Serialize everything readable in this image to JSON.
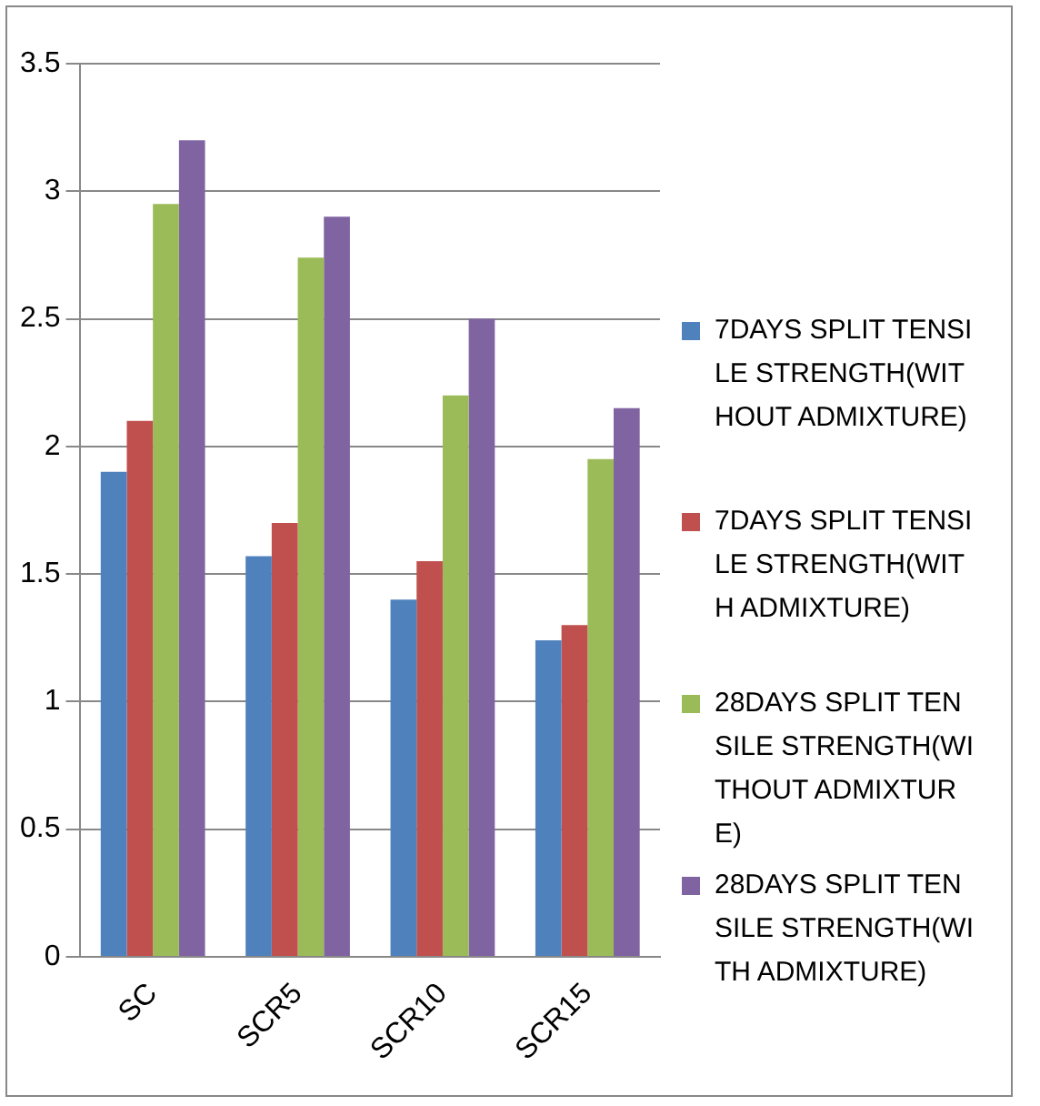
{
  "chart_data": {
    "type": "bar",
    "categories": [
      "SC",
      "SCR5",
      "SCR10",
      "SCR15"
    ],
    "series": [
      {
        "name": "7DAYS SPLIT TENSILE STRENGTH(WITHOUT ADMIXTURE)",
        "color": "#4f81bd",
        "values": [
          1.9,
          1.57,
          1.4,
          1.24
        ]
      },
      {
        "name": "7DAYS SPLIT TENSILE STRENGTH(WITH ADMIXTURE)",
        "color": "#c0504d",
        "values": [
          2.1,
          1.7,
          1.55,
          1.3
        ]
      },
      {
        "name": "28DAYS SPLIT TENSILE STRENGTH(WITHOUT ADMIXTURE)",
        "color": "#9bbb59",
        "values": [
          2.95,
          2.74,
          2.2,
          1.95
        ]
      },
      {
        "name": "28DAYS SPLIT TENSILE STRENGTH(WITH ADMIXTURE)",
        "color": "#8064a2",
        "values": [
          3.2,
          2.9,
          2.5,
          2.15
        ]
      }
    ],
    "ylim": [
      0,
      3.5
    ],
    "yticks": [
      0,
      0.5,
      1,
      1.5,
      2,
      2.5,
      3,
      3.5
    ],
    "grid": "y",
    "legend": "right"
  }
}
